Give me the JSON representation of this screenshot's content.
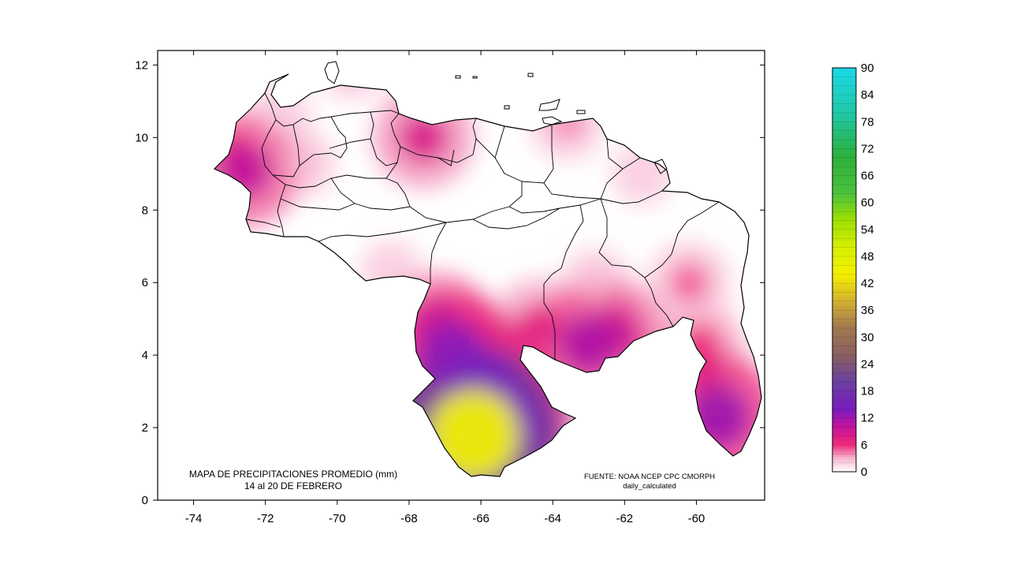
{
  "map": {
    "title_line1": "MAPA DE PRECIPITACIONES PROMEDIO (mm)",
    "title_line2": "14 al 20 DE FEBRERO",
    "source_line1": "FUENTE: NOAA NCEP CPC CMORPH",
    "source_line2": "daily_calculated",
    "x_ticks": [
      -74,
      -72,
      -70,
      -68,
      -66,
      -64,
      -62,
      -60
    ],
    "y_ticks": [
      0,
      2,
      4,
      6,
      8,
      10,
      12
    ],
    "xlim": [
      -75,
      -58.1
    ],
    "ylim": [
      0,
      12.4
    ]
  },
  "colorbar": {
    "labels": [
      "90",
      "84",
      "78",
      "72",
      "66",
      "60",
      "54",
      "48",
      "42",
      "36",
      "30",
      "24",
      "18",
      "12",
      "6",
      "0"
    ],
    "min": 0,
    "max": 90,
    "stops": [
      {
        "v": 0,
        "c": "#ffffff"
      },
      {
        "v": 3,
        "c": "#f7b5cf"
      },
      {
        "v": 6,
        "c": "#ee2a7b"
      },
      {
        "v": 10,
        "c": "#c4129a"
      },
      {
        "v": 14,
        "c": "#7a1cc0"
      },
      {
        "v": 20,
        "c": "#6a3fa0"
      },
      {
        "v": 26,
        "c": "#8a6060"
      },
      {
        "v": 32,
        "c": "#a07850"
      },
      {
        "v": 38,
        "c": "#d4b030"
      },
      {
        "v": 44,
        "c": "#f4f000"
      },
      {
        "v": 50,
        "c": "#d6ef00"
      },
      {
        "v": 56,
        "c": "#9ee000"
      },
      {
        "v": 62,
        "c": "#4cc23c"
      },
      {
        "v": 70,
        "c": "#2db03a"
      },
      {
        "v": 80,
        "c": "#20c8a8"
      },
      {
        "v": 90,
        "c": "#1ad9e6"
      }
    ]
  },
  "rain_cells": [
    {
      "lon": -72.6,
      "lat": 9.1,
      "mm": 10
    },
    {
      "lon": -72.8,
      "lat": 9.6,
      "mm": 6
    },
    {
      "lon": -71.0,
      "lat": 9.3,
      "mm": 3
    },
    {
      "lon": -71.6,
      "lat": 10.6,
      "mm": 2
    },
    {
      "lon": -67.6,
      "lat": 10.0,
      "mm": 8
    },
    {
      "lon": -69.6,
      "lat": 12.0,
      "mm": 3
    },
    {
      "lon": -63.6,
      "lat": 10.4,
      "mm": 4
    },
    {
      "lon": -61.5,
      "lat": 9.0,
      "mm": 2
    },
    {
      "lon": -68.5,
      "lat": 6.3,
      "mm": 2
    },
    {
      "lon": -67.2,
      "lat": 4.8,
      "mm": 9
    },
    {
      "lon": -66.8,
      "lat": 4.0,
      "mm": 13
    },
    {
      "lon": -66.0,
      "lat": 3.1,
      "mm": 15
    },
    {
      "lon": -66.2,
      "lat": 1.8,
      "mm": 45
    },
    {
      "lon": -65.4,
      "lat": 2.2,
      "mm": 14
    },
    {
      "lon": -64.4,
      "lat": 4.8,
      "mm": 7
    },
    {
      "lon": -63.0,
      "lat": 4.3,
      "mm": 11
    },
    {
      "lon": -62.3,
      "lat": 4.6,
      "mm": 9
    },
    {
      "lon": -62.8,
      "lat": 6.0,
      "mm": 3
    },
    {
      "lon": -60.2,
      "lat": 6.0,
      "mm": 5
    },
    {
      "lon": -59.8,
      "lat": 3.6,
      "mm": 7
    },
    {
      "lon": -59.4,
      "lat": 2.3,
      "mm": 12
    },
    {
      "lon": -59.9,
      "lat": 4.3,
      "mm": 6
    }
  ]
}
